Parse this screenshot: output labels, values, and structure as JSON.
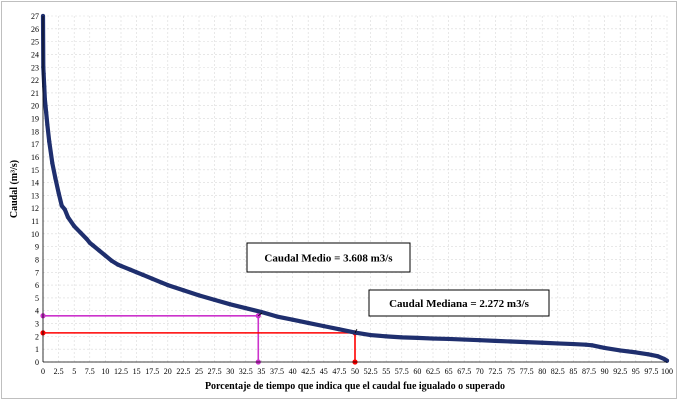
{
  "chart_data": {
    "type": "line",
    "xlabel": "Porcentaje de tiempo que indica que el caudal fue igualado o superado",
    "ylabel": "Caudal (m³/s)",
    "xlim": [
      0,
      100
    ],
    "ylim": [
      0,
      27
    ],
    "x_ticks": [
      "0",
      "2.5",
      "5",
      "7.5",
      "10",
      "12.5",
      "15",
      "17.5",
      "20",
      "22.5",
      "25",
      "27.5",
      "30",
      "32.5",
      "35",
      "37.5",
      "40",
      "42.5",
      "45",
      "47.5",
      "50",
      "52.5",
      "55",
      "57.5",
      "60",
      "62.5",
      "65",
      "67.5",
      "70",
      "72.5",
      "75",
      "77.5",
      "80",
      "82.5",
      "85",
      "87.5",
      "90",
      "92.5",
      "95",
      "97.5",
      "100"
    ],
    "y_ticks": [
      "0",
      "1",
      "2",
      "3",
      "4",
      "5",
      "6",
      "7",
      "8",
      "9",
      "10",
      "11",
      "12",
      "13",
      "14",
      "15",
      "16",
      "17",
      "18",
      "19",
      "20",
      "21",
      "22",
      "23",
      "24",
      "25",
      "26",
      "27"
    ],
    "grid": true,
    "series": [
      {
        "color": "#1f2f6e",
        "x": [
          0,
          0.05,
          0.1,
          0.2,
          0.3,
          0.4,
          0.5,
          0.7,
          1,
          1.5,
          2,
          2.5,
          3,
          3.5,
          4,
          5,
          6,
          7,
          7.5,
          8,
          9,
          10,
          11,
          12,
          12.5,
          14,
          15,
          16,
          17.5,
          19,
          20,
          22.5,
          25,
          27.5,
          30,
          32.5,
          35,
          37.5,
          40,
          42.5,
          45,
          47.5,
          50,
          52.5,
          55,
          57.5,
          60,
          62.5,
          65,
          67.5,
          70,
          72.5,
          75,
          77.5,
          80,
          82.5,
          85,
          87,
          88,
          90,
          92.5,
          95,
          97,
          98.5,
          99.5,
          100
        ],
        "values": [
          27,
          23,
          22.5,
          21.5,
          20.5,
          20,
          19.5,
          18.5,
          17.2,
          15.5,
          14.3,
          13.2,
          12.2,
          11.9,
          11.3,
          10.6,
          10.1,
          9.6,
          9.3,
          9.1,
          8.7,
          8.3,
          7.9,
          7.6,
          7.5,
          7.2,
          7.0,
          6.8,
          6.5,
          6.2,
          6.0,
          5.6,
          5.2,
          4.85,
          4.5,
          4.2,
          3.9,
          3.55,
          3.3,
          3.05,
          2.8,
          2.55,
          2.3,
          2.1,
          2.0,
          1.92,
          1.88,
          1.83,
          1.8,
          1.75,
          1.7,
          1.65,
          1.6,
          1.55,
          1.5,
          1.45,
          1.4,
          1.35,
          1.3,
          1.1,
          0.9,
          0.75,
          0.6,
          0.45,
          0.25,
          0.1
        ]
      }
    ],
    "reference_lines": [
      {
        "color": "#cc33cc",
        "x": 34.5,
        "y": 3.608
      },
      {
        "color": "#ff0000",
        "x": 50,
        "y": 2.272
      }
    ],
    "annotations": [
      {
        "text": "Caudal Medio = 3.608 m3/s",
        "x": 34.5,
        "y": 3.608
      },
      {
        "text": "Caudal Mediana = 2.272 m3/s",
        "x": 50,
        "y": 2.272
      }
    ]
  }
}
